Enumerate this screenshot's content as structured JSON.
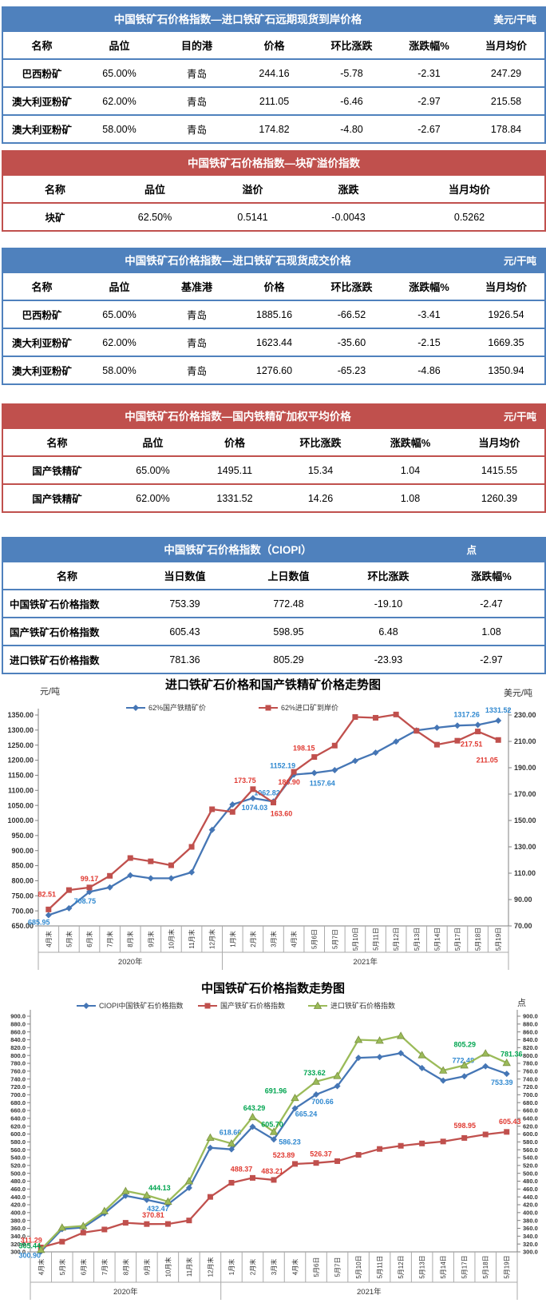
{
  "tables": [
    {
      "accent": "#4f81bd",
      "title": "中国铁矿石价格指数—进口铁矿石远期现货到岸价格",
      "unit": "美元/干吨",
      "headers": [
        "名称",
        "品位",
        "目的港",
        "价格",
        "环比涨跌",
        "涨跌幅%",
        "当月均价"
      ],
      "rows": [
        [
          "巴西粉矿",
          "65.00%",
          "青岛",
          "244.16",
          "-5.78",
          "-2.31",
          "247.29"
        ],
        [
          "澳大利亚粉矿",
          "62.00%",
          "青岛",
          "211.05",
          "-6.46",
          "-2.97",
          "215.58"
        ],
        [
          "澳大利亚粉矿",
          "58.00%",
          "青岛",
          "174.82",
          "-4.80",
          "-2.67",
          "178.84"
        ]
      ]
    },
    {
      "accent": "#c0504d",
      "title": "中国铁矿石价格指数—块矿溢价指数",
      "unit": "",
      "headers": [
        "名称",
        "品位",
        "溢价",
        "涨跌",
        "当月均价"
      ],
      "rows": [
        [
          "块矿",
          "62.50%",
          "0.5141",
          "-0.0043",
          "0.5262"
        ]
      ]
    },
    {
      "accent": "#4f81bd",
      "title": "中国铁矿石价格指数—进口铁矿石现货成交价格",
      "unit": "元/干吨",
      "headers": [
        "名称",
        "品位",
        "基准港",
        "价格",
        "环比涨跌",
        "涨跌幅%",
        "当月均价"
      ],
      "rows": [
        [
          "巴西粉矿",
          "65.00%",
          "青岛",
          "1885.16",
          "-66.52",
          "-3.41",
          "1926.54"
        ],
        [
          "澳大利亚粉矿",
          "62.00%",
          "青岛",
          "1623.44",
          "-35.60",
          "-2.15",
          "1669.35"
        ],
        [
          "澳大利亚粉矿",
          "58.00%",
          "青岛",
          "1276.60",
          "-65.23",
          "-4.86",
          "1350.94"
        ]
      ]
    },
    {
      "accent": "#c0504d",
      "title": "中国铁矿石价格指数—国内铁精矿加权平均价格",
      "unit": "元/干吨",
      "headers": [
        "名称",
        "品位",
        "价格",
        "环比涨跌",
        "涨跌幅%",
        "当月均价"
      ],
      "rows": [
        [
          "国产铁精矿",
          "65.00%",
          "1495.11",
          "15.34",
          "1.04",
          "1415.55"
        ],
        [
          "国产铁精矿",
          "62.00%",
          "1331.52",
          "14.26",
          "1.08",
          "1260.39"
        ]
      ]
    },
    {
      "accent": "#4f81bd",
      "title": "中国铁矿石价格指数（CIOPI）",
      "unit": "点",
      "headers": [
        "名称",
        "当日数值",
        "上日数值",
        "环比涨跌",
        "涨跌幅%"
      ],
      "rows": [
        [
          "中国铁矿石价格指数",
          "753.39",
          "772.48",
          "-19.10",
          "-2.47"
        ],
        [
          "国产铁矿石价格指数",
          "605.43",
          "598.95",
          "6.48",
          "1.08"
        ],
        [
          "进口铁矿石价格指数",
          "781.36",
          "805.29",
          "-23.93",
          "-2.97"
        ]
      ]
    }
  ],
  "chart_data": [
    {
      "type": "line",
      "title": "进口铁矿石价格和国产铁精矿价格走势图",
      "left_axis": {
        "label": "元/吨",
        "min": 650,
        "max": 1350,
        "step": 50,
        "decimals": 2
      },
      "right_axis": {
        "label": "美元/吨",
        "min": 70,
        "max": 230,
        "step": 20,
        "decimals": 2
      },
      "categories": [
        "4月末",
        "5月末",
        "6月末",
        "7月末",
        "8月末",
        "9月末",
        "10月末",
        "11月末",
        "12月末",
        "1月末",
        "2月末",
        "3月末",
        "4月末",
        "5月6日",
        "5月7日",
        "5月10日",
        "5月11日",
        "5月12日",
        "5月13日",
        "5月14日",
        "5月17日",
        "5月18日",
        "5月19日"
      ],
      "groups": [
        {
          "label": "2020年",
          "span": 9
        },
        {
          "label": "2021年",
          "span": 14
        }
      ],
      "series": [
        {
          "name": "62%国产铁精矿价",
          "color": "#4576b5",
          "label_color": "#2f88d0",
          "marker": "diamond",
          "axis": "left",
          "values": [
            685.95,
            708.75,
            763,
            778,
            818,
            808,
            808,
            828,
            969,
            1053,
            1074.03,
            1062.82,
            1152.19,
            1157.64,
            1167,
            1198,
            1225,
            1262,
            1299,
            1308,
            1315,
            1317.26,
            1331.52
          ],
          "labels": [
            {
              "i": 0,
              "dx": -12,
              "dy": 12
            },
            {
              "i": 1,
              "dx": 20,
              "dy": -6
            },
            {
              "i": 10,
              "dx": 2,
              "dy": 15
            },
            {
              "i": 11,
              "dx": -8,
              "dy": -8
            },
            {
              "i": 12,
              "dx": -14,
              "dy": -8
            },
            {
              "i": 13,
              "dx": 10,
              "dy": 16
            },
            {
              "i": 21,
              "dx": -14,
              "dy": -10
            },
            {
              "i": 22,
              "dx": 0,
              "dy": -10
            }
          ]
        },
        {
          "name": "62%进口矿到岸价",
          "color": "#c0504d",
          "label_color": "#e03a32",
          "marker": "square",
          "axis": "right",
          "values": [
            82.51,
            97.2,
            99.17,
            108,
            121.5,
            119,
            116,
            130,
            158.5,
            156.5,
            173.75,
            163.6,
            186.9,
            198.15,
            206.8,
            228.5,
            227.9,
            230.4,
            218,
            207.5,
            210.5,
            217.51,
            211.05
          ],
          "labels": [
            {
              "i": 0,
              "dx": -2,
              "dy": -16
            },
            {
              "i": 2,
              "dx": 0,
              "dy": -8
            },
            {
              "i": 10,
              "dx": -10,
              "dy": -8
            },
            {
              "i": 11,
              "dx": 10,
              "dy": 17
            },
            {
              "i": 12,
              "dx": -6,
              "dy": 16
            },
            {
              "i": 13,
              "dx": -13,
              "dy": -8
            },
            {
              "i": 21,
              "dx": -8,
              "dy": 19
            },
            {
              "i": 22,
              "dx": -14,
              "dy": 28
            }
          ]
        }
      ]
    },
    {
      "type": "line",
      "title": "中国铁矿石价格指数走势图",
      "left_axis": {
        "label": "",
        "min": 300,
        "max": 900,
        "step": 20,
        "decimals": 1
      },
      "right_axis": {
        "label": "点",
        "min": 300,
        "max": 900,
        "step": 20,
        "decimals": 1
      },
      "categories": [
        "4月末",
        "5月末",
        "6月末",
        "7月末",
        "8月末",
        "9月末",
        "10月末",
        "11月末",
        "12月末",
        "1月末",
        "2月末",
        "3月末",
        "4月末",
        "5月6日",
        "5月7日",
        "5月10日",
        "5月11日",
        "5月12日",
        "5月13日",
        "5月14日",
        "5月17日",
        "5月18日",
        "5月19日"
      ],
      "groups": [
        {
          "label": "2020年",
          "span": 9
        },
        {
          "label": "2021年",
          "span": 14
        }
      ],
      "series": [
        {
          "name": "CIOPI中国铁矿石价格指数",
          "color": "#4576b5",
          "label_color": "#2f88d0",
          "marker": "diamond",
          "axis": "left",
          "values": [
            300.9,
            358,
            362,
            398,
            443,
            432.47,
            421,
            463,
            565,
            561,
            618.66,
            586.23,
            665.24,
            700.66,
            722,
            794,
            796,
            806,
            768,
            736,
            747,
            772.48,
            753.39
          ],
          "labels": [
            {
              "i": 0,
              "dx": -14,
              "dy": 8
            },
            {
              "i": 5,
              "dx": 14,
              "dy": 14
            },
            {
              "i": 10,
              "dx": -28,
              "dy": 10
            },
            {
              "i": 11,
              "dx": 20,
              "dy": 6
            },
            {
              "i": 12,
              "dx": 14,
              "dy": 10
            },
            {
              "i": 13,
              "dx": 8,
              "dy": 12
            },
            {
              "i": 21,
              "dx": -28,
              "dy": -4
            },
            {
              "i": 22,
              "dx": -6,
              "dy": 14
            }
          ]
        },
        {
          "name": "国产铁矿石价格指数",
          "color": "#c0504d",
          "label_color": "#e03a32",
          "marker": "square",
          "axis": "left",
          "values": [
            311.29,
            326,
            349,
            357,
            374,
            370.81,
            371,
            380,
            440,
            476,
            488.37,
            483.21,
            523.89,
            526.37,
            531,
            547,
            562,
            570,
            576,
            581,
            590,
            598.95,
            605.43
          ],
          "labels": [
            {
              "i": 0,
              "dx": -12,
              "dy": -6
            },
            {
              "i": 5,
              "dx": 8,
              "dy": -8
            },
            {
              "i": 10,
              "dx": -14,
              "dy": -8
            },
            {
              "i": 11,
              "dx": -2,
              "dy": -8
            },
            {
              "i": 12,
              "dx": -14,
              "dy": -8
            },
            {
              "i": 13,
              "dx": 6,
              "dy": -8
            },
            {
              "i": 21,
              "dx": -26,
              "dy": -8
            },
            {
              "i": 22,
              "dx": 4,
              "dy": -10
            }
          ]
        },
        {
          "name": "进口铁矿石价格指数",
          "color": "#9bbb59",
          "label_color": "#00a550",
          "marker": "triangle",
          "axis": "left",
          "values": [
            305.44,
            362,
            366,
            404,
            455,
            444.13,
            428,
            480,
            591,
            576,
            643.29,
            605.7,
            691.96,
            733.62,
            748,
            840,
            838,
            850,
            801,
            762,
            775,
            805.29,
            781.36
          ],
          "labels": [
            {
              "i": 0,
              "dx": -14,
              "dy": -2
            },
            {
              "i": 5,
              "dx": 16,
              "dy": -6
            },
            {
              "i": 10,
              "dx": 2,
              "dy": -8
            },
            {
              "i": 11,
              "dx": -2,
              "dy": -6
            },
            {
              "i": 12,
              "dx": -24,
              "dy": -6
            },
            {
              "i": 13,
              "dx": -2,
              "dy": -8
            },
            {
              "i": 21,
              "dx": -26,
              "dy": -8
            },
            {
              "i": 22,
              "dx": 6,
              "dy": -8
            }
          ]
        }
      ]
    }
  ]
}
